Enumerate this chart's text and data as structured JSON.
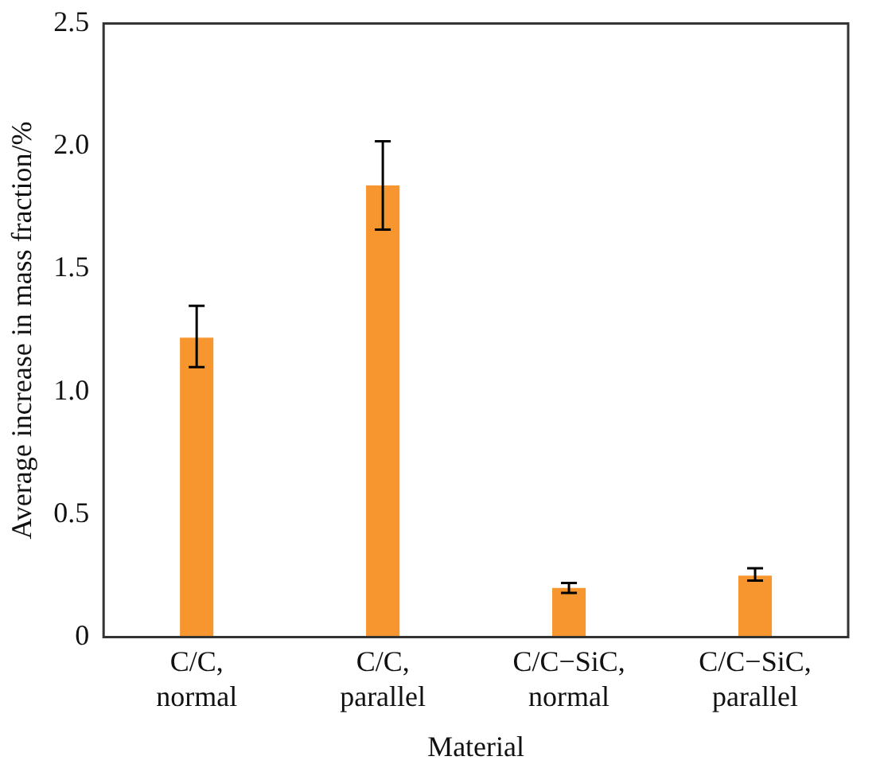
{
  "chart_data": {
    "type": "bar",
    "xlabel": "Material",
    "ylabel": "Average increase in mass fraction/%",
    "categories": [
      "C/C, normal",
      "C/C, parallel",
      "C/C−SiC, normal",
      "C/C−SiC, parallel"
    ],
    "values": [
      1.22,
      1.84,
      0.2,
      0.25
    ],
    "errors": [
      [
        1.1,
        1.35
      ],
      [
        1.66,
        2.02
      ],
      [
        0.18,
        0.22
      ],
      [
        0.23,
        0.28
      ]
    ],
    "color": "#f7962f",
    "ylim": [
      0,
      2.5
    ],
    "yticks": [
      0,
      0.5,
      {
        "value": 1,
        "label": "1.0"
      },
      1.5,
      {
        "value": 2,
        "label": "2.0"
      },
      2.5
    ],
    "grid": false,
    "legend": false
  }
}
